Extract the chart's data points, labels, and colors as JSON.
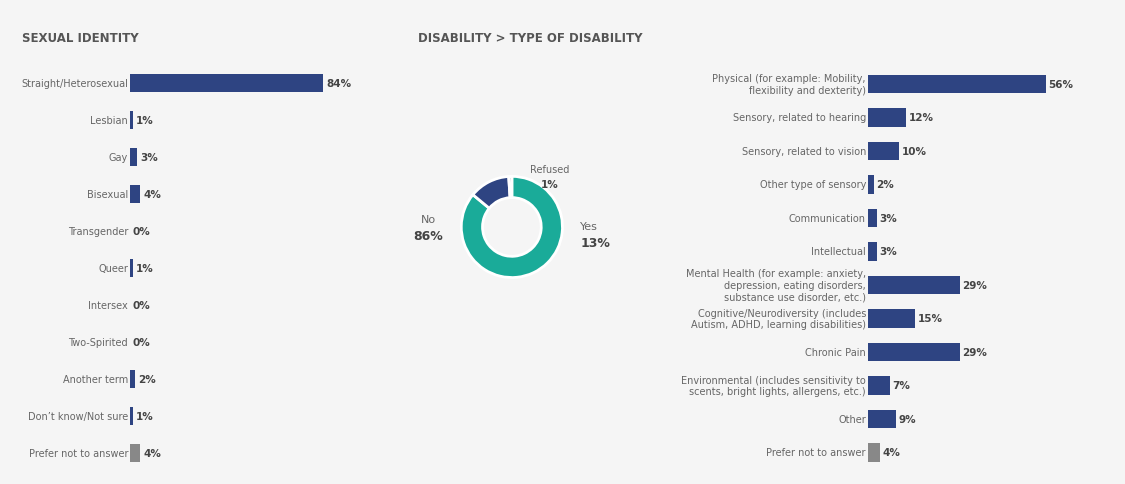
{
  "title_left": "SEXUAL IDENTITY",
  "title_right": "DISABILITY > TYPE OF DISABILITY",
  "background_color": "#f5f5f5",
  "panel_bg": "#ffffff",
  "header_bg": "#e8e8e8",
  "sexual_identity_labels": [
    "Straight/Heterosexual",
    "Lesbian",
    "Gay",
    "Bisexual",
    "Transgender",
    "Queer",
    "Intersex",
    "Two-Spirited",
    "Another term",
    "Don’t know/Not sure",
    "Prefer not to answer"
  ],
  "sexual_identity_values": [
    84,
    1,
    3,
    4,
    0,
    1,
    0,
    0,
    2,
    1,
    4
  ],
  "sexual_identity_bar_color": "#2e4482",
  "sexual_identity_grey_color": "#888888",
  "donut_values": [
    86,
    13,
    1
  ],
  "donut_labels": [
    "No\n86%",
    "Yes\n13%",
    "Refused\n1%"
  ],
  "donut_colors": [
    "#1aab99",
    "#2e4482",
    "#aaaaaa"
  ],
  "disability_labels": [
    "Physical (for example: Mobility,\nflexibility and dexterity)",
    "Sensory, related to hearing",
    "Sensory, related to vision",
    "Other type of sensory",
    "Communication",
    "Intellectual",
    "Mental Health (for example: anxiety,\ndepression, eating disorders,\nsubstance use disorder, etc.)",
    "Cognitive/Neurodiversity (includes\nAutism, ADHD, learning disabilities)",
    "Chronic Pain",
    "Environmental (includes sensitivity to\nscents, bright lights, allergens, etc.)",
    "Other",
    "Prefer not to answer"
  ],
  "disability_values": [
    56,
    12,
    10,
    2,
    3,
    3,
    29,
    15,
    29,
    7,
    9,
    4
  ],
  "disability_bar_color": "#2e4482",
  "disability_grey_color": "#888888",
  "arrow_color": "#2e4482",
  "text_color": "#666666",
  "bold_text_color": "#444444",
  "label_fontsize": 7.0,
  "value_fontsize": 7.5,
  "title_fontsize": 8.5
}
